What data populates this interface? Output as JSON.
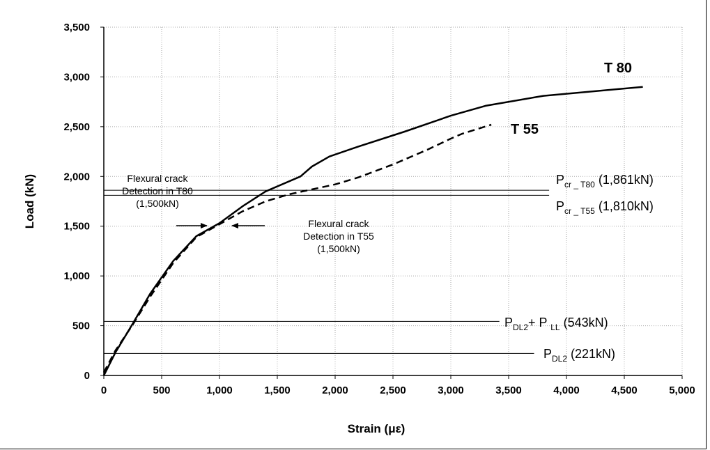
{
  "chart_data": {
    "type": "line",
    "xlabel": "Strain (με)",
    "ylabel": "Load (kN)",
    "xlim": [
      0,
      5000
    ],
    "ylim": [
      0,
      3500
    ],
    "xticks": [
      "0",
      "500",
      "1,000",
      "1,500",
      "2,000",
      "2,500",
      "3,000",
      "3,500",
      "4,000",
      "4,500",
      "5,000"
    ],
    "yticks": [
      "0",
      "500",
      "1,000",
      "1,500",
      "2,000",
      "2,500",
      "3,000",
      "3,500"
    ],
    "grid": "dotted",
    "series": [
      {
        "name": "T 80",
        "style": "solid",
        "x": [
          0,
          100,
          250,
          400,
          600,
          800,
          1000,
          1200,
          1400,
          1700,
          1800,
          1950,
          2200,
          2600,
          3000,
          3300,
          3800,
          4660
        ],
        "y": [
          0,
          230,
          520,
          820,
          1150,
          1400,
          1530,
          1700,
          1850,
          2000,
          2100,
          2200,
          2300,
          2450,
          2610,
          2710,
          2810,
          2900
        ]
      },
      {
        "name": "T 55",
        "style": "dashed",
        "x": [
          0,
          100,
          250,
          400,
          600,
          800,
          1000,
          1200,
          1400,
          1600,
          1800,
          2000,
          2200,
          2500,
          2800,
          3000,
          3100,
          3350
        ],
        "y": [
          30,
          250,
          510,
          790,
          1130,
          1390,
          1520,
          1650,
          1750,
          1820,
          1870,
          1920,
          1990,
          2120,
          2270,
          2380,
          2430,
          2520
        ]
      }
    ],
    "reference_lines": [
      {
        "y": 1861,
        "x_end": 3850,
        "label_main": "P",
        "label_sub": "cr _ T80",
        "label_value": " (1,861kN)"
      },
      {
        "y": 1810,
        "x_end": 3850,
        "label_main": "P",
        "label_sub": "cr _ T55",
        "label_value": " (1,810kN)"
      },
      {
        "y": 543,
        "x_end": 3420,
        "label_main": "P",
        "label_sub": "DL2",
        "label_rest_main": "+ P ",
        "label_rest_sub": "LL",
        "label_value": " (543kN)"
      },
      {
        "y": 221,
        "x_end": 3720,
        "label_main": "P",
        "label_sub": "DL2",
        "label_value": " (221kN)"
      }
    ],
    "annotations": [
      {
        "lines": [
          "Flexural crack",
          "Detection in T80",
          "(1,500kN)"
        ]
      },
      {
        "lines": [
          "Flexural crack",
          "Detection in T55",
          "(1,500kN)"
        ]
      }
    ]
  }
}
